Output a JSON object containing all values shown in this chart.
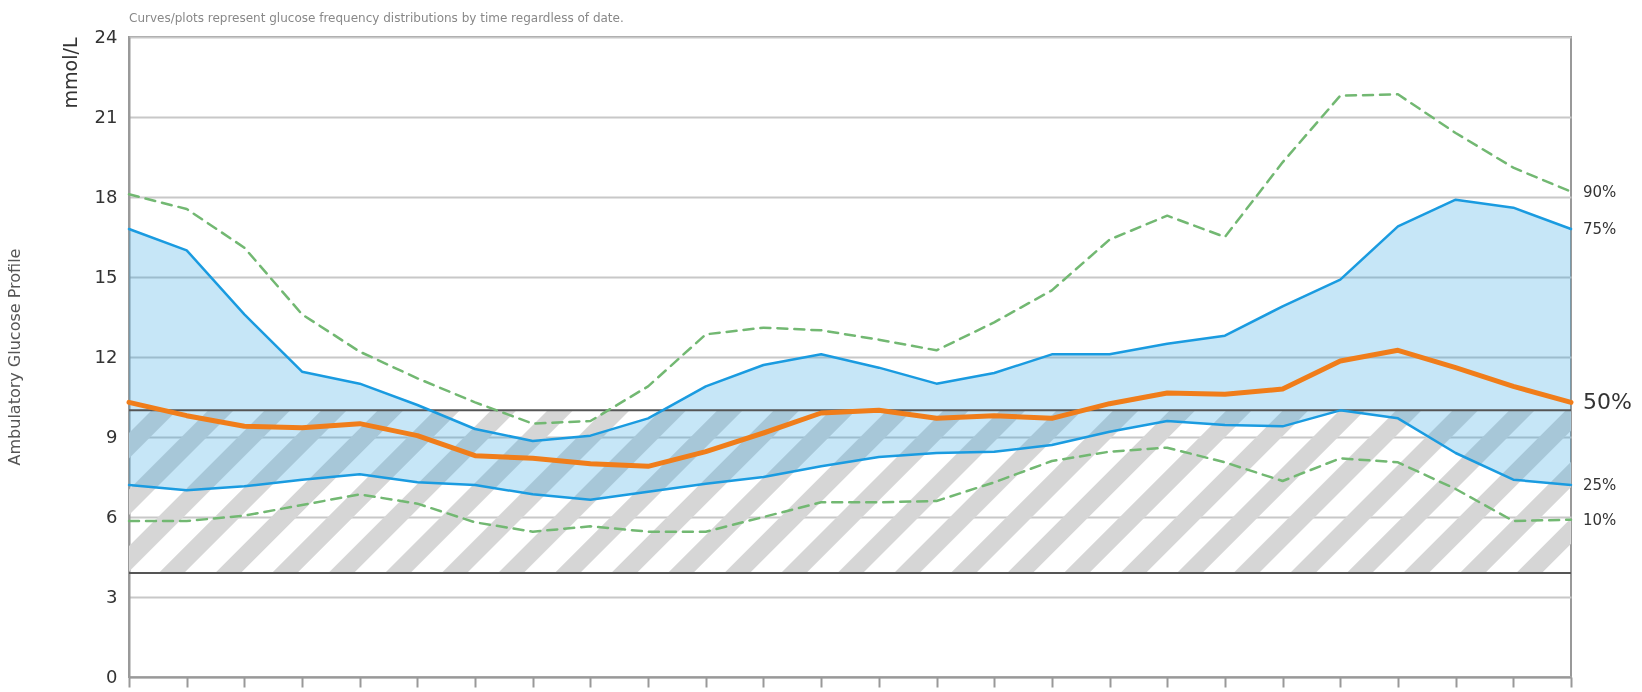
{
  "chart_data": {
    "type": "line",
    "title": "Ambulatory Glucose Profile",
    "ylabel": "mmol/L",
    "annotations": [
      "Curves/plots represent glucose frequency distributions by time regardless of date."
    ],
    "categories": [
      null,
      null,
      null,
      null,
      null,
      null,
      null,
      null,
      null,
      null,
      null,
      null,
      null,
      null,
      null,
      null,
      null,
      null,
      null,
      null,
      null,
      null,
      null,
      null,
      null,
      null
    ],
    "ylim": [
      0,
      24
    ],
    "yticks": [
      0,
      3,
      6,
      9,
      12,
      15,
      18,
      21,
      24
    ],
    "grid": "y",
    "tick_labels": "y",
    "legend": "right",
    "bands": [
      {
        "axis": "y",
        "from": 3.9,
        "to": 10,
        "color": "#d6d6d6"
      }
    ],
    "ref_lines": [
      {
        "axis": "y",
        "value": 3.9,
        "color": "#555555"
      },
      {
        "axis": "y",
        "value": 10,
        "color": "#555555"
      }
    ],
    "series": [
      {
        "name": "90%",
        "color": "#72b872",
        "line_style": "dashed",
        "values": [
          18.1,
          17.55,
          16.1,
          13.6,
          12.2,
          11.2,
          10.3,
          9.5,
          9.6,
          10.9,
          12.85,
          13.1,
          13.0,
          12.65,
          12.25,
          13.3,
          14.5,
          16.4,
          17.3,
          16.5,
          19.3,
          21.8,
          21.85,
          20.4,
          19.1,
          18.2
        ]
      },
      {
        "name": "75%",
        "color": "#1a9be0",
        "values": [
          16.8,
          16.0,
          13.6,
          11.45,
          11.0,
          10.2,
          9.3,
          8.85,
          9.05,
          9.7,
          10.9,
          11.7,
          12.1,
          11.6,
          11.0,
          11.4,
          12.1,
          12.1,
          12.5,
          12.8,
          13.9,
          14.9,
          16.9,
          17.9,
          17.6,
          16.8
        ],
        "lower": [
          7.2,
          7.0,
          7.15,
          7.4,
          7.6,
          7.3,
          7.2,
          6.85,
          6.65,
          6.95,
          7.25,
          7.5,
          7.9,
          8.25,
          8.4,
          8.45,
          8.7,
          9.2,
          9.6,
          9.45,
          9.4,
          10.0,
          9.7,
          8.4,
          7.4,
          7.2
        ],
        "upper": [
          16.8,
          16.0,
          13.6,
          11.45,
          11.0,
          10.2,
          9.3,
          8.85,
          9.05,
          9.7,
          10.9,
          11.7,
          12.1,
          11.6,
          11.0,
          11.4,
          12.1,
          12.1,
          12.5,
          12.8,
          13.9,
          14.9,
          16.9,
          17.9,
          17.6,
          16.8
        ]
      },
      {
        "name": "50%",
        "color": "#f07d1a",
        "values": [
          10.3,
          9.8,
          9.4,
          9.35,
          9.5,
          9.05,
          8.3,
          8.2,
          8.0,
          7.9,
          8.45,
          9.15,
          9.9,
          10.0,
          9.7,
          9.8,
          9.7,
          10.25,
          10.65,
          10.6,
          10.8,
          11.85,
          12.25,
          11.6,
          10.9,
          10.3
        ]
      },
      {
        "name": "25%",
        "color": "#1a9be0",
        "values": [
          7.2,
          7.0,
          7.15,
          7.4,
          7.6,
          7.3,
          7.2,
          6.85,
          6.65,
          6.95,
          7.25,
          7.5,
          7.9,
          8.25,
          8.4,
          8.45,
          8.7,
          9.2,
          9.6,
          9.45,
          9.4,
          10.0,
          9.7,
          8.4,
          7.4,
          7.2
        ]
      },
      {
        "name": "10%",
        "color": "#72b872",
        "line_style": "dashed",
        "values": [
          5.85,
          5.85,
          6.05,
          6.45,
          6.85,
          6.5,
          5.8,
          5.45,
          5.65,
          5.45,
          5.45,
          6.0,
          6.55,
          6.55,
          6.6,
          7.3,
          8.1,
          8.45,
          8.6,
          8.05,
          7.35,
          8.2,
          8.05,
          7.05,
          5.85,
          5.9
        ]
      }
    ]
  }
}
